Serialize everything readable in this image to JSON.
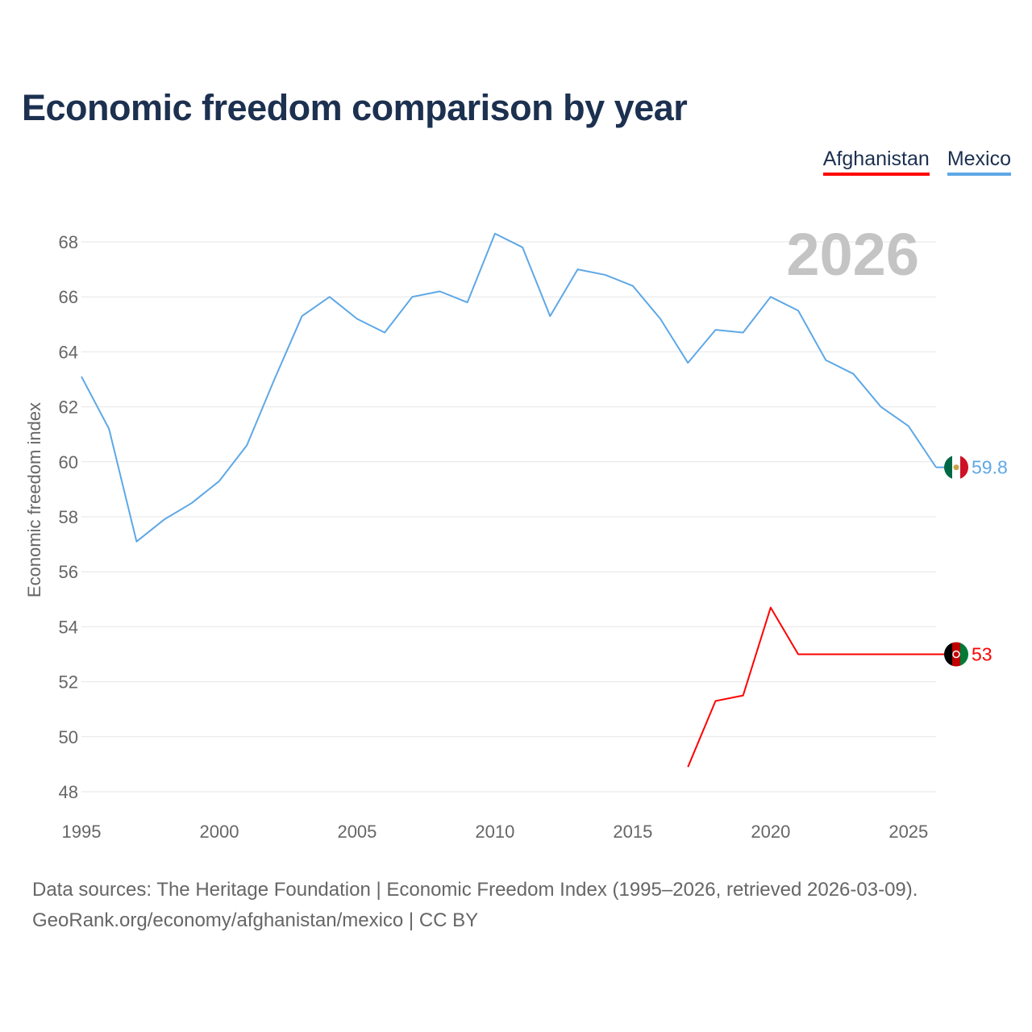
{
  "title": "Economic freedom comparison by year",
  "legend": [
    {
      "label": "Afghanistan",
      "color": "#ff0000"
    },
    {
      "label": "Mexico",
      "color": "#5ea8e6"
    }
  ],
  "footer": {
    "line1": "Data sources: The Heritage Foundation | Economic Freedom Index (1995–2026, retrieved 2026-03-09).",
    "line2": "GeoRank.org/economy/afghanistan/mexico | CC BY"
  },
  "chart_data": {
    "type": "line",
    "title": "Economic freedom comparison by year",
    "watermark_year": "2026",
    "xlabel": "",
    "ylabel": "Economic freedom index",
    "xlim": [
      1995,
      2026
    ],
    "ylim": [
      47,
      69
    ],
    "xticks": [
      1995,
      2000,
      2005,
      2010,
      2015,
      2020,
      2025
    ],
    "yticks": [
      48,
      50,
      52,
      54,
      56,
      58,
      60,
      62,
      64,
      66,
      68
    ],
    "grid": true,
    "series": [
      {
        "name": "Mexico",
        "color": "#5ea8e6",
        "end_label": "59.8",
        "flag": "mexico-flag",
        "x": [
          1995,
          1996,
          1997,
          1998,
          1999,
          2000,
          2001,
          2002,
          2003,
          2004,
          2005,
          2006,
          2007,
          2008,
          2009,
          2010,
          2011,
          2012,
          2013,
          2014,
          2015,
          2016,
          2017,
          2018,
          2019,
          2020,
          2021,
          2022,
          2023,
          2024,
          2025,
          2026
        ],
        "values": [
          63.1,
          61.2,
          57.1,
          57.9,
          58.5,
          59.3,
          60.6,
          63.0,
          65.3,
          66.0,
          65.2,
          64.7,
          66.0,
          66.2,
          65.8,
          68.3,
          67.8,
          65.3,
          67.0,
          66.8,
          66.4,
          65.2,
          63.6,
          64.8,
          64.7,
          66.0,
          65.5,
          63.7,
          63.2,
          62.0,
          61.3,
          59.8
        ]
      },
      {
        "name": "Afghanistan",
        "color": "#ff0000",
        "end_label": "53",
        "flag": "afghanistan-flag",
        "x": [
          2017,
          2018,
          2019,
          2020,
          2021,
          2022,
          2023,
          2024,
          2025,
          2026
        ],
        "values": [
          48.9,
          51.3,
          51.5,
          54.7,
          53.0,
          53.0,
          53.0,
          53.0,
          53.0,
          53.0
        ]
      }
    ]
  }
}
